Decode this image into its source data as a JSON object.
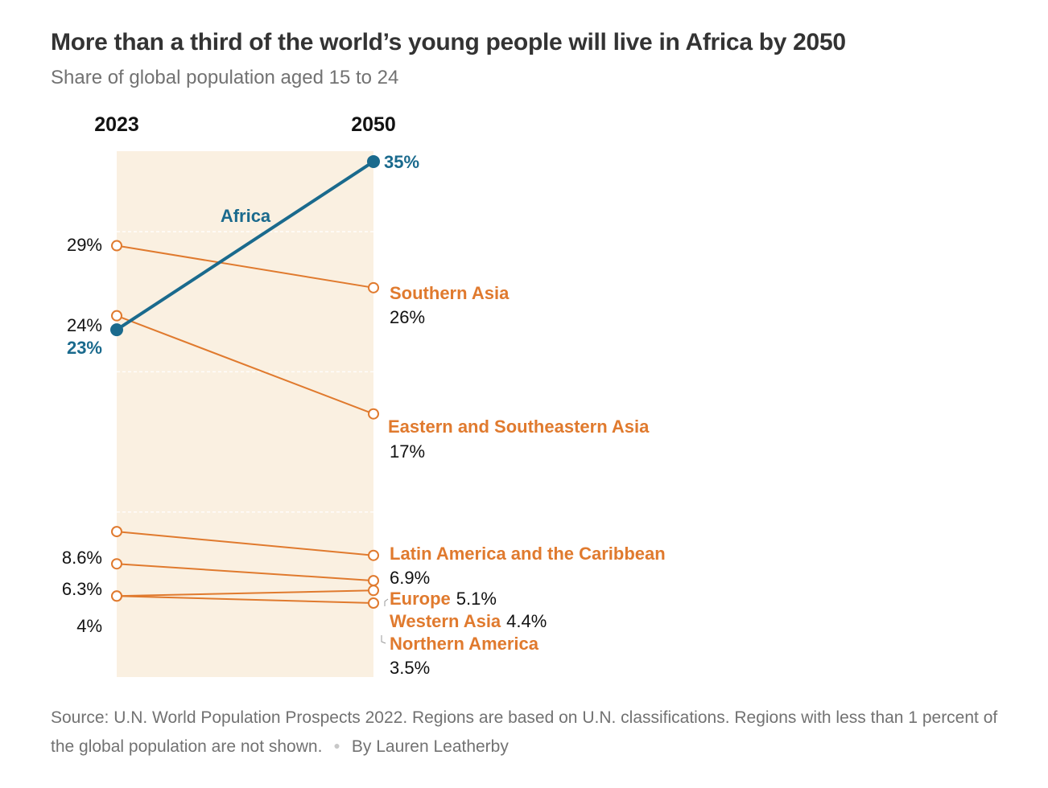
{
  "title": "More than a third of the world’s young people will live in Africa by 2050",
  "subtitle": "Share of global population aged 15 to 24",
  "footer": {
    "source": "Source: U.N. World Population Prospects 2022. Regions are based on U.N. classifications. Regions with less than 1 percent of the global population are not shown.",
    "byline": "By Lauren Leatherby"
  },
  "colors": {
    "africa": "#1a6a8d",
    "other": "#e07a2e",
    "band": "#faf0e1",
    "text": "#121212"
  },
  "chart_data": {
    "type": "line",
    "subtype": "slope",
    "x": [
      "2023",
      "2050"
    ],
    "ylabel": "",
    "series": [
      {
        "name": "Africa",
        "values": [
          23,
          35
        ],
        "highlight": true,
        "start_label": "23%",
        "end_label": "35%"
      },
      {
        "name": "Southern Asia",
        "values": [
          29,
          26
        ],
        "start_label": "29%",
        "end_label": "26%"
      },
      {
        "name": "Eastern and Southeastern Asia",
        "values": [
          24,
          17
        ],
        "start_label": "24%",
        "end_label": "17%"
      },
      {
        "name": "Latin America and the Caribbean",
        "values": [
          8.6,
          6.9
        ],
        "start_label": "8.6%",
        "end_label": "6.9%"
      },
      {
        "name": "Europe",
        "values": [
          6.3,
          5.1
        ],
        "start_label": "6.3%",
        "end_label": "5.1%"
      },
      {
        "name": "Western Asia",
        "values": [
          4,
          4.4
        ],
        "start_label": "4%",
        "end_label": "4.4%"
      },
      {
        "name": "Northern America",
        "values": [
          4,
          3.5
        ],
        "start_label": "",
        "end_label": "3.5%"
      }
    ],
    "ylim": [
      0,
      35
    ],
    "grid": true,
    "legend": "none"
  }
}
